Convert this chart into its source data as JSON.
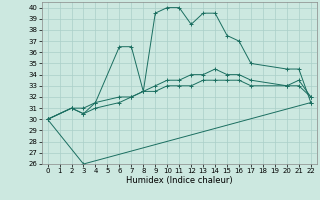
{
  "xlabel": "Humidex (Indice chaleur)",
  "background_color": "#cce8e0",
  "grid_color": "#aacfc8",
  "line_color": "#1a6e60",
  "xlim": [
    -0.5,
    22.5
  ],
  "ylim": [
    26,
    40.5
  ],
  "yticks": [
    26,
    27,
    28,
    29,
    30,
    31,
    32,
    33,
    34,
    35,
    36,
    37,
    38,
    39,
    40
  ],
  "xticks": [
    0,
    1,
    2,
    3,
    4,
    5,
    6,
    7,
    8,
    9,
    10,
    11,
    12,
    13,
    14,
    15,
    16,
    17,
    18,
    19,
    20,
    21,
    22
  ],
  "series": [
    {
      "x": [
        0,
        2,
        3,
        4,
        6,
        7,
        8,
        9,
        10,
        11,
        12,
        13,
        14,
        15,
        16,
        17,
        20,
        21,
        22
      ],
      "y": [
        30,
        31,
        30.5,
        31.5,
        36.5,
        36.5,
        32.5,
        39.5,
        40,
        40,
        38.5,
        39.5,
        39.5,
        37.5,
        37.0,
        35.0,
        34.5,
        34.5,
        31.5
      ]
    },
    {
      "x": [
        0,
        2,
        3,
        4,
        6,
        7,
        8,
        9,
        10,
        11,
        12,
        13,
        14,
        15,
        16,
        17,
        20,
        21,
        22
      ],
      "y": [
        30,
        31,
        31,
        31.5,
        32,
        32,
        32.5,
        33,
        33.5,
        33.5,
        34,
        34,
        34.5,
        34,
        34,
        33.5,
        33,
        33.5,
        32
      ]
    },
    {
      "x": [
        0,
        2,
        3,
        4,
        6,
        7,
        8,
        9,
        10,
        11,
        12,
        13,
        14,
        15,
        16,
        17,
        20,
        21,
        22
      ],
      "y": [
        30,
        31,
        30.5,
        31,
        31.5,
        32,
        32.5,
        32.5,
        33,
        33,
        33,
        33.5,
        33.5,
        33.5,
        33.5,
        33,
        33,
        33,
        32
      ]
    },
    {
      "x": [
        0,
        3,
        22
      ],
      "y": [
        30,
        26,
        31.5
      ]
    }
  ]
}
